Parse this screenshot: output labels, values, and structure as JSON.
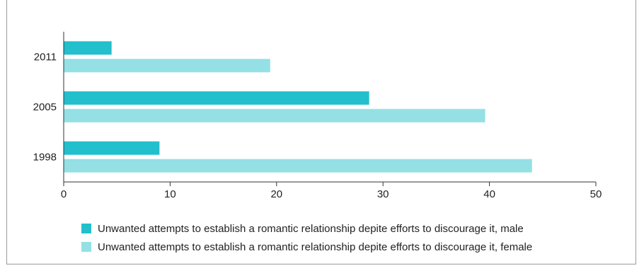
{
  "chart_data": {
    "type": "bar",
    "orientation": "horizontal",
    "categories": [
      "2011",
      "2005",
      "1998"
    ],
    "series": [
      {
        "name": "Unwanted attempts to establish a romantic relationship depite efforts to discourage it, male",
        "color": "#22bfcc",
        "values": [
          4.5,
          28.7,
          9.0
        ]
      },
      {
        "name": "Unwanted attempts to establish a romantic relationship depite efforts to discourage it, female",
        "color": "#94e0e5",
        "values": [
          19.4,
          39.6,
          44.0
        ]
      }
    ],
    "xlim": [
      0,
      50
    ],
    "xticks": [
      "0",
      "10",
      "20",
      "30",
      "40",
      "50"
    ],
    "grid": false,
    "legend_position": "bottom"
  }
}
